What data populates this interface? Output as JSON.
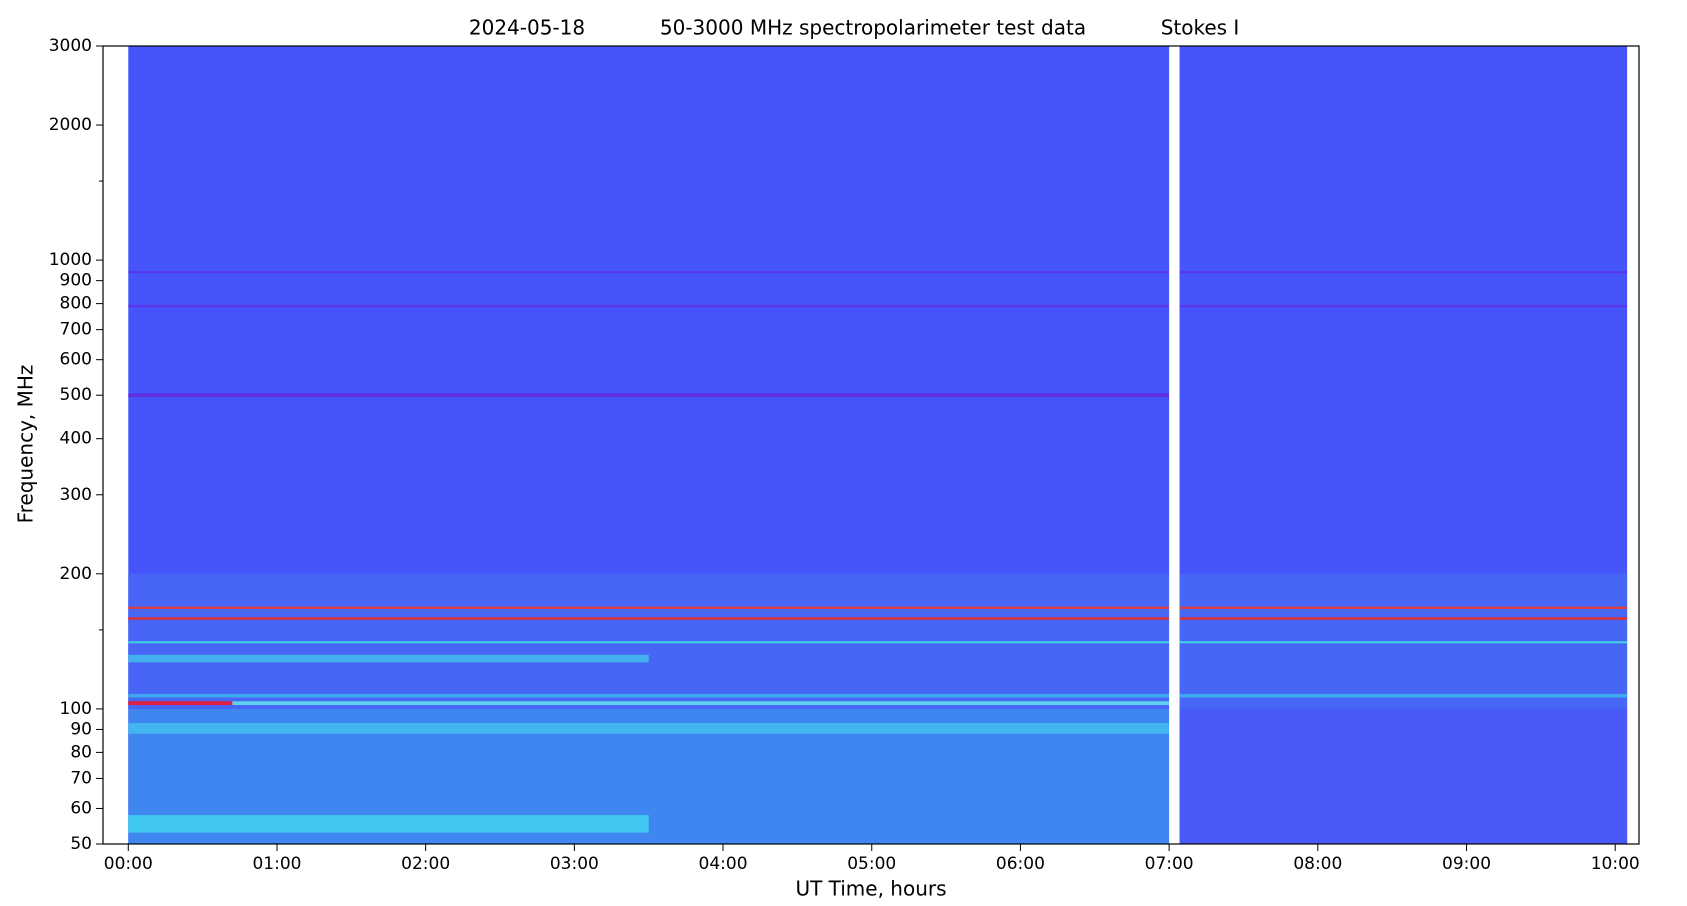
{
  "chart_data": {
    "type": "spectrogram",
    "title": [
      "2024-05-18",
      "50-3000 MHz spectropolarimeter test data",
      "Stokes I"
    ],
    "x_label": "UT Time, hours",
    "y_label": "Frequency, MHz",
    "log_y": true,
    "xlim": [
      -0.17,
      10.16
    ],
    "ylim": [
      50,
      3000
    ],
    "xticks": [
      {
        "value": 0,
        "label": "00:00"
      },
      {
        "value": 1,
        "label": "01:00"
      },
      {
        "value": 2,
        "label": "02:00"
      },
      {
        "value": 3,
        "label": "03:00"
      },
      {
        "value": 4,
        "label": "04:00"
      },
      {
        "value": 5,
        "label": "05:00"
      },
      {
        "value": 6,
        "label": "06:00"
      },
      {
        "value": 7,
        "label": "07:00"
      },
      {
        "value": 8,
        "label": "08:00"
      },
      {
        "value": 9,
        "label": "09:00"
      },
      {
        "value": 10,
        "label": "10:00"
      }
    ],
    "yticks": [
      50,
      60,
      70,
      80,
      90,
      100,
      200,
      300,
      400,
      500,
      600,
      700,
      800,
      900,
      1000,
      2000,
      3000
    ],
    "yminor": [
      150,
      1500
    ],
    "data_extent": [
      0,
      10.08
    ],
    "background_color": "#4655fb",
    "gap": [
      7.0,
      7.07
    ],
    "features": [
      {
        "t0": 0,
        "t1": 10.08,
        "f0": 50,
        "f1": 100,
        "color": "#3f86f0"
      },
      {
        "t0": 0,
        "t1": 10.08,
        "f0": 100,
        "f1": 200,
        "color": "#4766f6"
      },
      {
        "t0": 7.07,
        "t1": 10.08,
        "f0": 50,
        "f1": 100,
        "color": "#4a5af6"
      },
      {
        "t0": 0,
        "t1": 3.5,
        "f0": 53,
        "f1": 58,
        "color": "#40c8f0"
      },
      {
        "t0": 0,
        "t1": 7,
        "f0": 88,
        "f1": 93,
        "color": "#45b5f0"
      },
      {
        "t0": 0,
        "t1": 0.7,
        "f0": 102,
        "f1": 104,
        "color": "#e02040"
      },
      {
        "t0": 0.7,
        "t1": 7,
        "f0": 102,
        "f1": 104,
        "color": "#60d0f0"
      },
      {
        "t0": 0,
        "t1": 10.08,
        "f0": 106,
        "f1": 108,
        "color": "#3fa8f0"
      },
      {
        "t0": 0,
        "t1": 3.5,
        "f0": 127,
        "f1": 132,
        "color": "#45b0ee"
      },
      {
        "t0": 0,
        "t1": 10.08,
        "f0": 140,
        "f1": 141.5,
        "color": "#3fd0e8"
      },
      {
        "t0": 0,
        "t1": 10.08,
        "f0": 158,
        "f1": 160,
        "color": "#e03030"
      },
      {
        "t0": 0,
        "t1": 10.08,
        "f0": 167,
        "f1": 169,
        "color": "#e04040"
      },
      {
        "t0": 0,
        "t1": 7,
        "f0": 495,
        "f1": 505,
        "color": "#6030e0"
      },
      {
        "t0": 0,
        "t1": 10.08,
        "f0": 785,
        "f1": 795,
        "color": "#5a38e6"
      },
      {
        "t0": 0,
        "t1": 10.08,
        "f0": 935,
        "f1": 945,
        "color": "#5a38e6"
      }
    ]
  }
}
